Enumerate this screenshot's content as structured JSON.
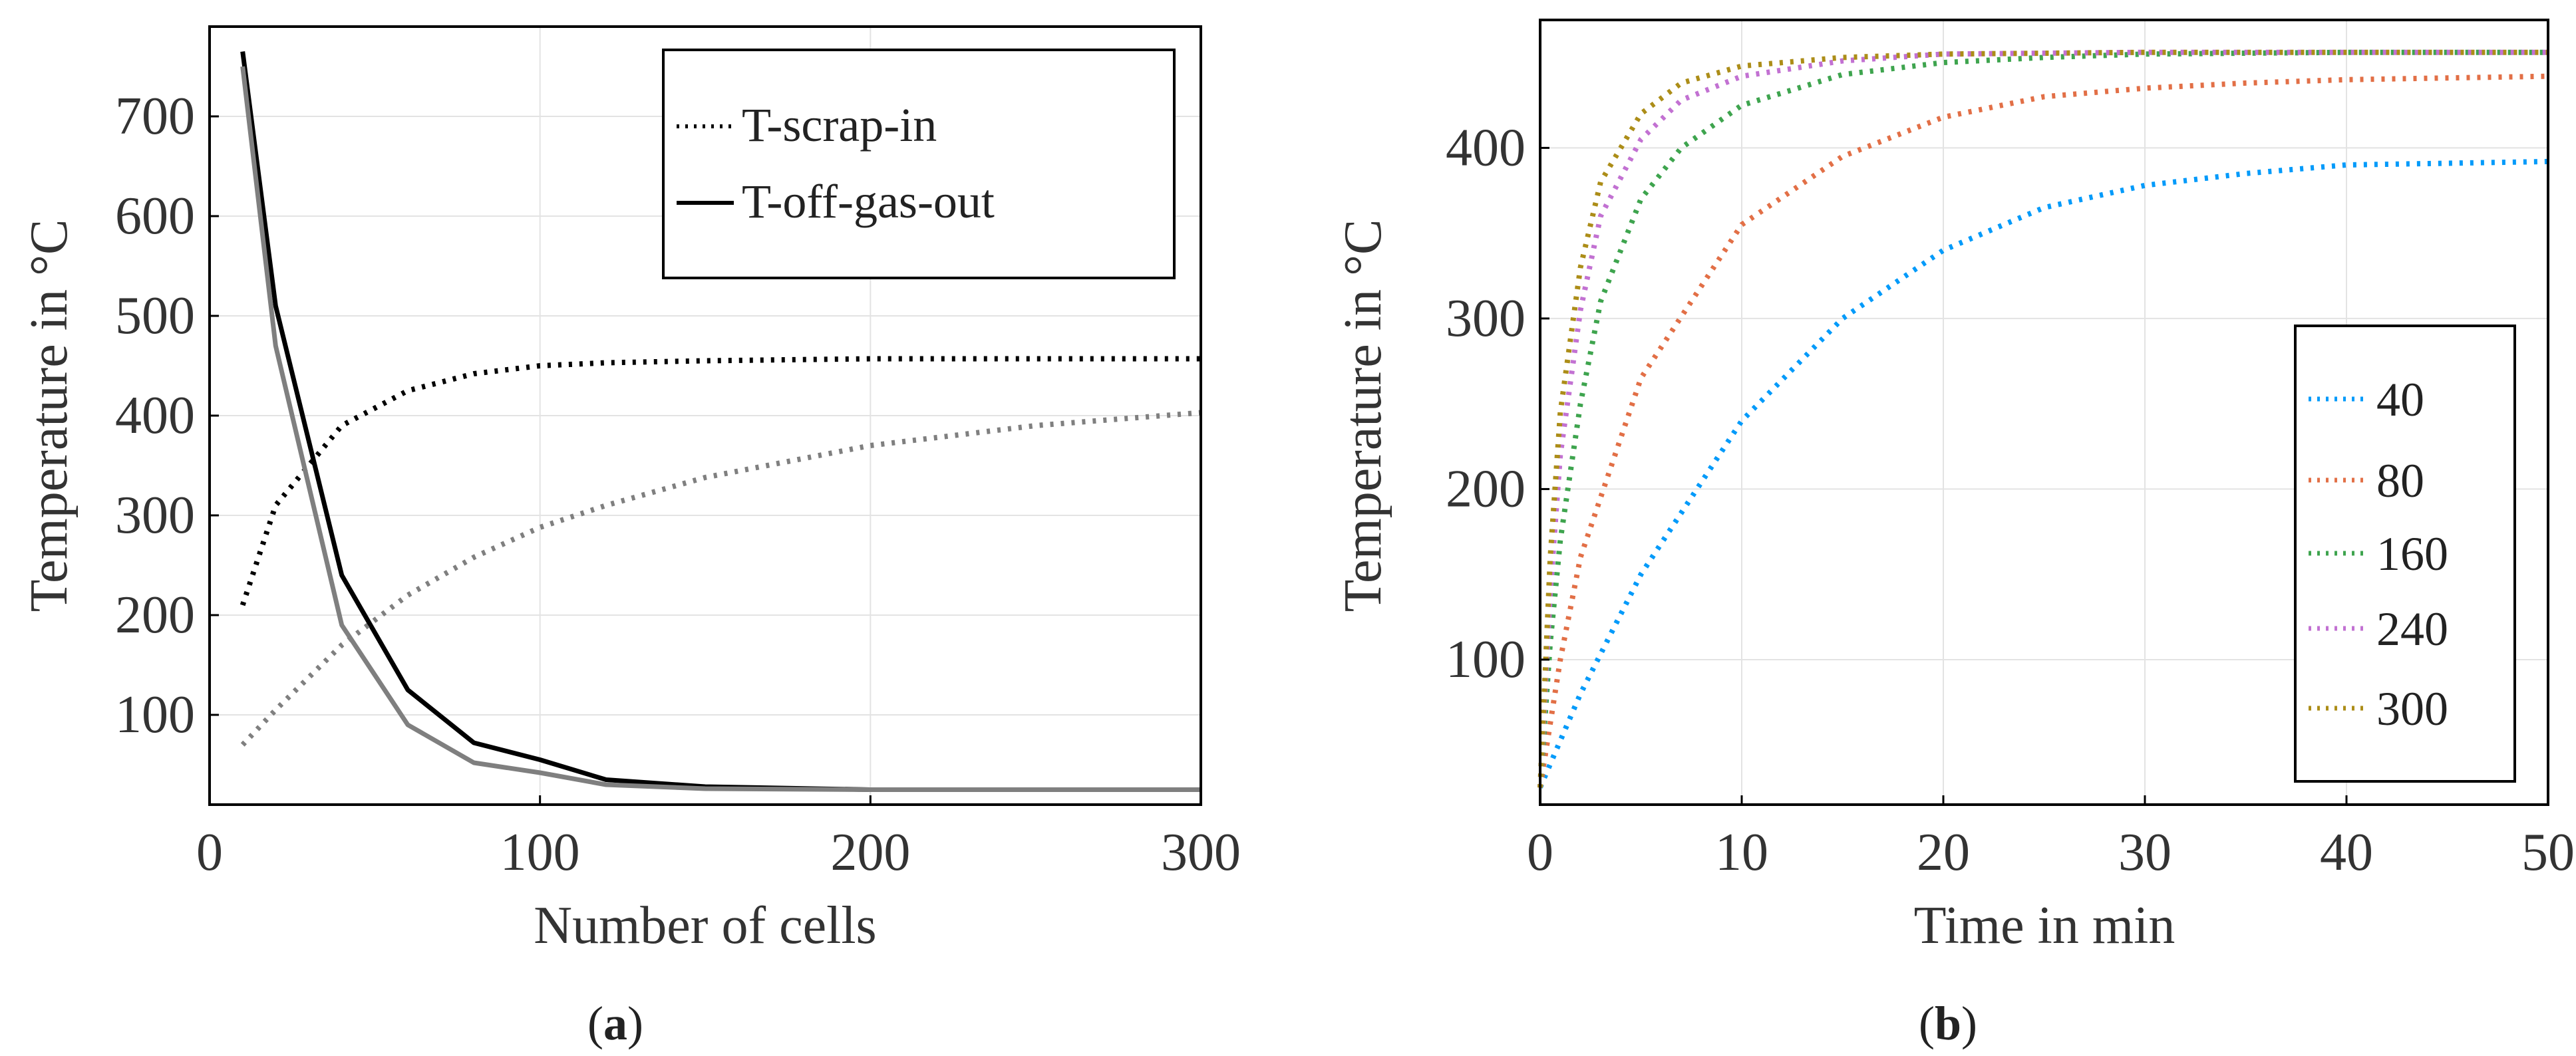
{
  "chart_data": [
    {
      "type": "line",
      "panel_label": "a",
      "xlabel": "Number of cells",
      "ylabel": "Temperature in °C",
      "xlim": [
        0,
        300
      ],
      "ylim": [
        10,
        790
      ],
      "xticks": [
        0,
        100,
        200,
        300
      ],
      "yticks": [
        100,
        200,
        300,
        400,
        500,
        600,
        700
      ],
      "grid": true,
      "legend_position": "top-right",
      "legend": [
        {
          "label": "T-scrap-in",
          "style": "dotted",
          "color": "#000000"
        },
        {
          "label": "T-off-gas-out",
          "style": "solid",
          "color": "#000000"
        }
      ],
      "series": [
        {
          "name": "T-scrap-in",
          "style": "dotted",
          "color": "#000000",
          "in_legend": true,
          "x": [
            10,
            20,
            40,
            60,
            80,
            100,
            120,
            150,
            200,
            250,
            300
          ],
          "y": [
            210,
            310,
            390,
            425,
            442,
            450,
            453,
            455,
            457,
            457,
            457
          ]
        },
        {
          "name": "T-off-gas-out",
          "style": "solid",
          "color": "#000000",
          "in_legend": true,
          "x": [
            10,
            20,
            40,
            60,
            80,
            100,
            120,
            150,
            200,
            250,
            300
          ],
          "y": [
            765,
            510,
            240,
            125,
            72,
            55,
            35,
            28,
            25,
            25,
            25
          ]
        },
        {
          "name": "T-scrap-in (grey)",
          "style": "dotted",
          "color": "#7f7f7f",
          "in_legend": false,
          "x": [
            10,
            20,
            40,
            60,
            80,
            100,
            120,
            150,
            200,
            250,
            300
          ],
          "y": [
            70,
            105,
            170,
            220,
            258,
            288,
            310,
            338,
            370,
            390,
            403
          ]
        },
        {
          "name": "T-off-gas-out (grey)",
          "style": "solid",
          "color": "#7f7f7f",
          "in_legend": false,
          "x": [
            10,
            20,
            40,
            60,
            80,
            100,
            120,
            150,
            200,
            250,
            300
          ],
          "y": [
            750,
            470,
            190,
            90,
            52,
            42,
            30,
            26,
            25,
            25,
            25
          ]
        }
      ]
    },
    {
      "type": "line",
      "panel_label": "b",
      "xlabel": "Time in min",
      "ylabel": "Temperature in °C",
      "xlim": [
        0,
        50
      ],
      "ylim": [
        15,
        475
      ],
      "xticks": [
        0,
        10,
        20,
        30,
        40,
        50
      ],
      "yticks": [
        100,
        200,
        300,
        400
      ],
      "grid": true,
      "legend_position": "bottom-right",
      "legend": [
        {
          "label": "40",
          "style": "dotted",
          "color": "#009AFA"
        },
        {
          "label": "80",
          "style": "dotted",
          "color": "#E26F46"
        },
        {
          "label": "160",
          "style": "dotted",
          "color": "#3EA44E"
        },
        {
          "label": "240",
          "style": "dotted",
          "color": "#C271D2"
        },
        {
          "label": "300",
          "style": "dotted",
          "color": "#AC8D18"
        }
      ],
      "series": [
        {
          "name": "40",
          "style": "dotted",
          "color": "#009AFA",
          "x": [
            0,
            2,
            5,
            10,
            15,
            20,
            25,
            30,
            35,
            40,
            45,
            50
          ],
          "y": [
            25,
            80,
            150,
            240,
            300,
            340,
            365,
            378,
            385,
            390,
            391,
            392
          ]
        },
        {
          "name": "80",
          "style": "dotted",
          "color": "#E26F46",
          "x": [
            0,
            1,
            2,
            5,
            10,
            15,
            20,
            25,
            30,
            35,
            40,
            45,
            50
          ],
          "y": [
            25,
            100,
            160,
            265,
            355,
            395,
            418,
            430,
            435,
            438,
            440,
            441,
            442
          ]
        },
        {
          "name": "160",
          "style": "dotted",
          "color": "#3EA44E",
          "x": [
            0,
            0.5,
            1,
            2,
            3,
            5,
            7,
            10,
            15,
            20,
            25,
            30,
            40,
            50
          ],
          "y": [
            25,
            110,
            170,
            250,
            310,
            370,
            400,
            425,
            443,
            450,
            453,
            455,
            456,
            456
          ]
        },
        {
          "name": "240",
          "style": "dotted",
          "color": "#C271D2",
          "x": [
            0,
            0.5,
            1,
            2,
            3,
            5,
            7,
            10,
            15,
            20,
            30,
            40,
            50
          ],
          "y": [
            25,
            140,
            220,
            305,
            360,
            405,
            428,
            442,
            451,
            455,
            456,
            456,
            456
          ]
        },
        {
          "name": "300",
          "style": "dotted",
          "color": "#AC8D18",
          "x": [
            0,
            0.5,
            1,
            2,
            3,
            5,
            7,
            10,
            15,
            20,
            30,
            40,
            50
          ],
          "y": [
            25,
            160,
            245,
            330,
            380,
            420,
            438,
            448,
            453,
            455,
            456,
            456,
            456
          ]
        }
      ]
    }
  ]
}
